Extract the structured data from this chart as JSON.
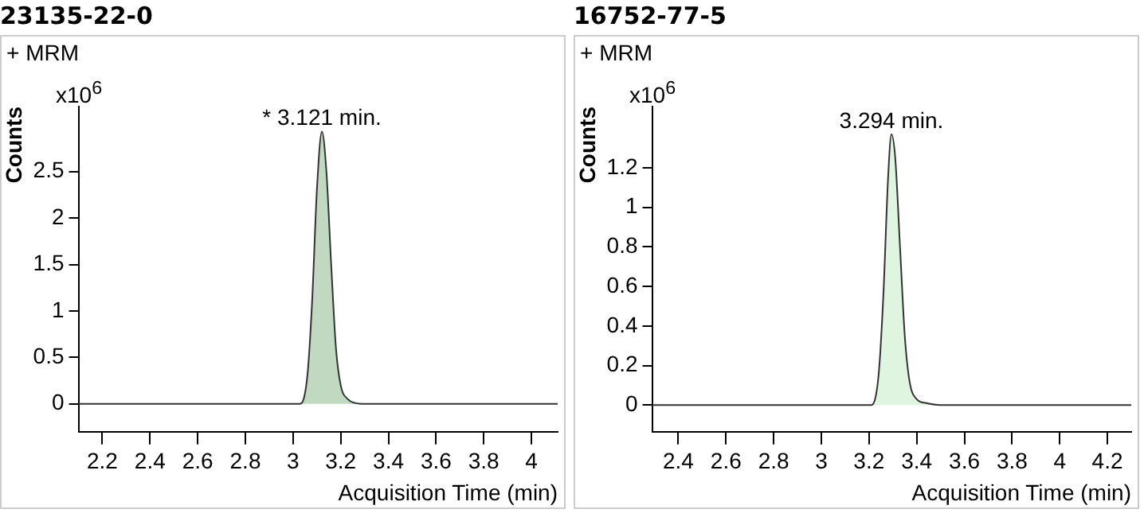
{
  "chart_data": [
    {
      "type": "area",
      "title": "23135-22-0",
      "xlabel": "Acquisition Time (min)",
      "ylabel": "Counts",
      "annotations": [
        "+ MRM",
        "x10$^{6}$",
        {
          "text": "* 3.121 min.",
          "x": 3.121,
          "y": 2.93
        }
      ],
      "series": [
        {
          "color": "#c0d9c0",
          "x": [
            2.1,
            3.03,
            3.06,
            3.08,
            3.1,
            3.121,
            3.14,
            3.16,
            3.18,
            3.2,
            3.23,
            3.26,
            3.3,
            4.11
          ],
          "values": [
            0,
            0,
            0.3,
            1.1,
            2.3,
            2.93,
            2.5,
            1.5,
            0.6,
            0.2,
            0.05,
            0.01,
            0,
            0
          ]
        }
      ],
      "xlim": [
        2.1,
        4.11
      ],
      "xticks": [
        2.2,
        2.4,
        2.6,
        2.8,
        3,
        3.2,
        3.4,
        3.6,
        3.8,
        4
      ],
      "ylim": [
        -0.3,
        3.2
      ],
      "yticks": [
        0,
        0.5,
        1,
        1.5,
        2,
        2.5
      ],
      "grid": false,
      "legend": false
    },
    {
      "type": "area",
      "title": "16752-77-5",
      "xlabel": "Acquisition Time (min)",
      "ylabel": "Counts",
      "annotations": [
        "+ MRM",
        "x10$^{6}$",
        {
          "text": "3.294 min.",
          "x": 3.294,
          "y": 1.37
        }
      ],
      "series": [
        {
          "color": "#e0f5e0",
          "x": [
            2.29,
            3.21,
            3.24,
            3.26,
            3.28,
            3.294,
            3.31,
            3.33,
            3.35,
            3.37,
            3.4,
            3.44,
            3.5,
            4.3
          ],
          "values": [
            0,
            0,
            0.15,
            0.55,
            1.15,
            1.37,
            1.25,
            0.8,
            0.35,
            0.12,
            0.03,
            0.01,
            0,
            0
          ]
        }
      ],
      "xlim": [
        2.29,
        4.3
      ],
      "xticks": [
        2.4,
        2.6,
        2.8,
        3,
        3.2,
        3.4,
        3.6,
        3.8,
        4,
        4.2
      ],
      "ylim": [
        -0.135,
        1.51
      ],
      "yticks": [
        0,
        0.2,
        0.4,
        0.6,
        0.8,
        1,
        1.2
      ],
      "grid": false,
      "legend": false
    }
  ]
}
